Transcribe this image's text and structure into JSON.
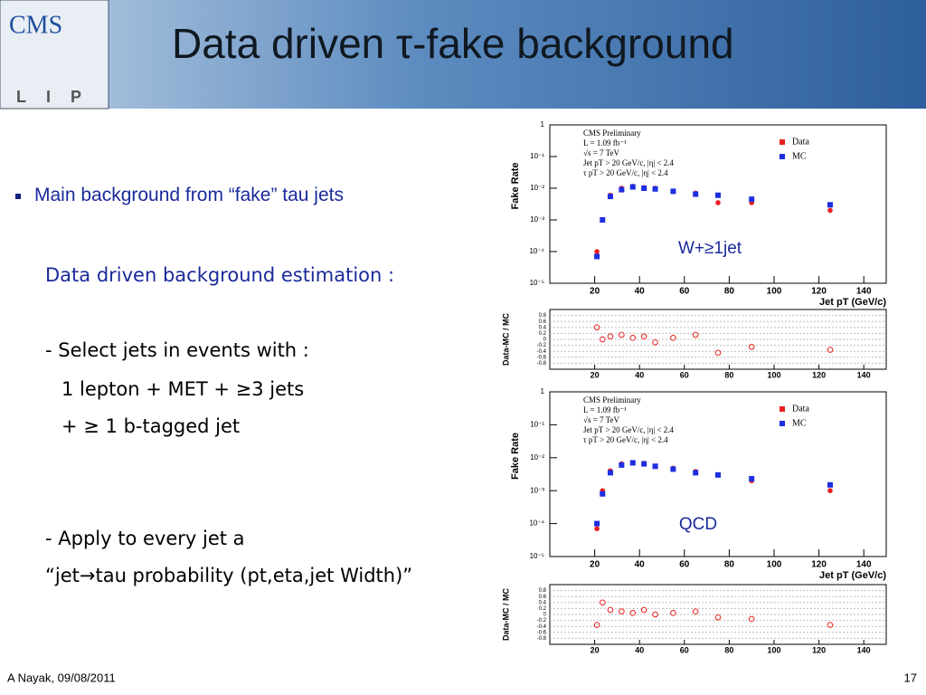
{
  "header": {
    "title": "Data driven τ-fake background",
    "logo_top": "CMS",
    "logo_bottom": "LIP"
  },
  "bullets": [
    "Main background from “fake” tau jets",
    "Data driven background estimation :",
    "- Select jets in events with :",
    "1 lepton + MET + ≥3 jets",
    "+  ≥ 1 b-tagged jet",
    "-  Apply to every jet a",
    "“jet→tau probability (pt,eta,jet Width)”"
  ],
  "footer": {
    "author": "A Nayak,  09/08/2011",
    "page": "17"
  },
  "plots": [
    {
      "type": "scatter",
      "label": "W+≥1jet",
      "ylabel": "Fake Rate",
      "xlabel": "Jet pT (GeV/c)",
      "legend_text": [
        "CMS Preliminary",
        "L = 1.09 fb⁻¹",
        "√s = 7 TeV",
        "Jet pT > 20 GeV/c, |η| < 2.4",
        "τ pT > 20 GeV/c, |η| < 2.4"
      ],
      "xlim": [
        0,
        150
      ],
      "xticks": [
        20,
        40,
        60,
        80,
        100,
        120,
        140
      ],
      "log_y": true,
      "ylim": [
        1e-05,
        1
      ],
      "yticks": [
        {
          "value": 1e-05,
          "label": "10⁻⁵"
        },
        {
          "value": 0.0001,
          "label": "10⁻⁴"
        },
        {
          "value": 0.001,
          "label": "10⁻³"
        },
        {
          "value": 0.01,
          "label": "10⁻²"
        },
        {
          "value": 0.1,
          "label": "10⁻¹"
        },
        1
      ],
      "x": [
        21,
        23.5,
        27,
        32,
        37,
        42,
        47,
        55,
        65,
        75,
        90,
        125
      ],
      "series": [
        {
          "name": "Data",
          "color": "#e8201e",
          "values": [
            0.0001,
            0.001,
            0.006,
            0.01,
            0.0115,
            0.0105,
            0.01,
            0.008,
            0.007,
            0.0035,
            0.0035,
            0.002
          ]
        },
        {
          "name": "MC",
          "color": "#1d2ee0",
          "values": [
            7e-05,
            0.001,
            0.0055,
            0.009,
            0.011,
            0.01,
            0.0095,
            0.008,
            0.0065,
            0.006,
            0.0045,
            0.003
          ]
        }
      ],
      "ratio": {
        "ylabel": "Data-MC / MC",
        "ylim": [
          -1,
          1
        ],
        "yticks": [
          -0.8,
          -0.6,
          -0.4,
          -0.2,
          0,
          0.2,
          0.4,
          0.6,
          0.8
        ],
        "color": "#e8201e",
        "values": [
          0.4,
          0.0,
          0.1,
          0.15,
          0.05,
          0.1,
          -0.1,
          0.05,
          0.15,
          -0.45,
          -0.25,
          -0.35
        ]
      }
    },
    {
      "type": "scatter",
      "label": "QCD",
      "ylabel": "Fake Rate",
      "xlabel": "Jet pT (GeV/c)",
      "legend_text": [
        "CMS Preliminary",
        "L = 1.09 fb⁻¹",
        "√s = 7 TeV",
        "Jet pT > 20 GeV/c, |η| < 2.4",
        "τ pT > 20 GeV/c, |η| < 2.4"
      ],
      "xlim": [
        0,
        150
      ],
      "xticks": [
        20,
        40,
        60,
        80,
        100,
        120,
        140
      ],
      "log_y": true,
      "ylim": [
        1e-05,
        1
      ],
      "yticks": [
        {
          "value": 1e-05,
          "label": "10⁻⁵"
        },
        {
          "value": 0.0001,
          "label": "10⁻⁴"
        },
        {
          "value": 0.001,
          "label": "10⁻³"
        },
        {
          "value": 0.01,
          "label": "10⁻²"
        },
        {
          "value": 0.1,
          "label": "10⁻¹"
        },
        1
      ],
      "x": [
        21,
        23.5,
        27,
        32,
        37,
        42,
        47,
        55,
        65,
        75,
        90,
        125
      ],
      "series": [
        {
          "name": "Data",
          "color": "#e8201e",
          "values": [
            7e-05,
            0.001,
            0.004,
            0.0065,
            0.007,
            0.0068,
            0.0055,
            0.0048,
            0.0038,
            0.003,
            0.002,
            0.001
          ]
        },
        {
          "name": "MC",
          "color": "#1d2ee0",
          "values": [
            0.0001,
            0.0008,
            0.0035,
            0.006,
            0.007,
            0.0065,
            0.0055,
            0.0045,
            0.0035,
            0.003,
            0.0023,
            0.0015
          ]
        }
      ],
      "ratio": {
        "ylabel": "Data-MC / MC",
        "ylim": [
          -1,
          1
        ],
        "yticks": [
          -0.8,
          -0.6,
          -0.4,
          -0.2,
          0,
          0.2,
          0.4,
          0.6,
          0.8
        ],
        "color": "#e8201e",
        "values": [
          -0.35,
          0.4,
          0.15,
          0.1,
          0.05,
          0.15,
          0.0,
          0.05,
          0.1,
          -0.1,
          -0.15,
          -0.35
        ]
      }
    }
  ]
}
